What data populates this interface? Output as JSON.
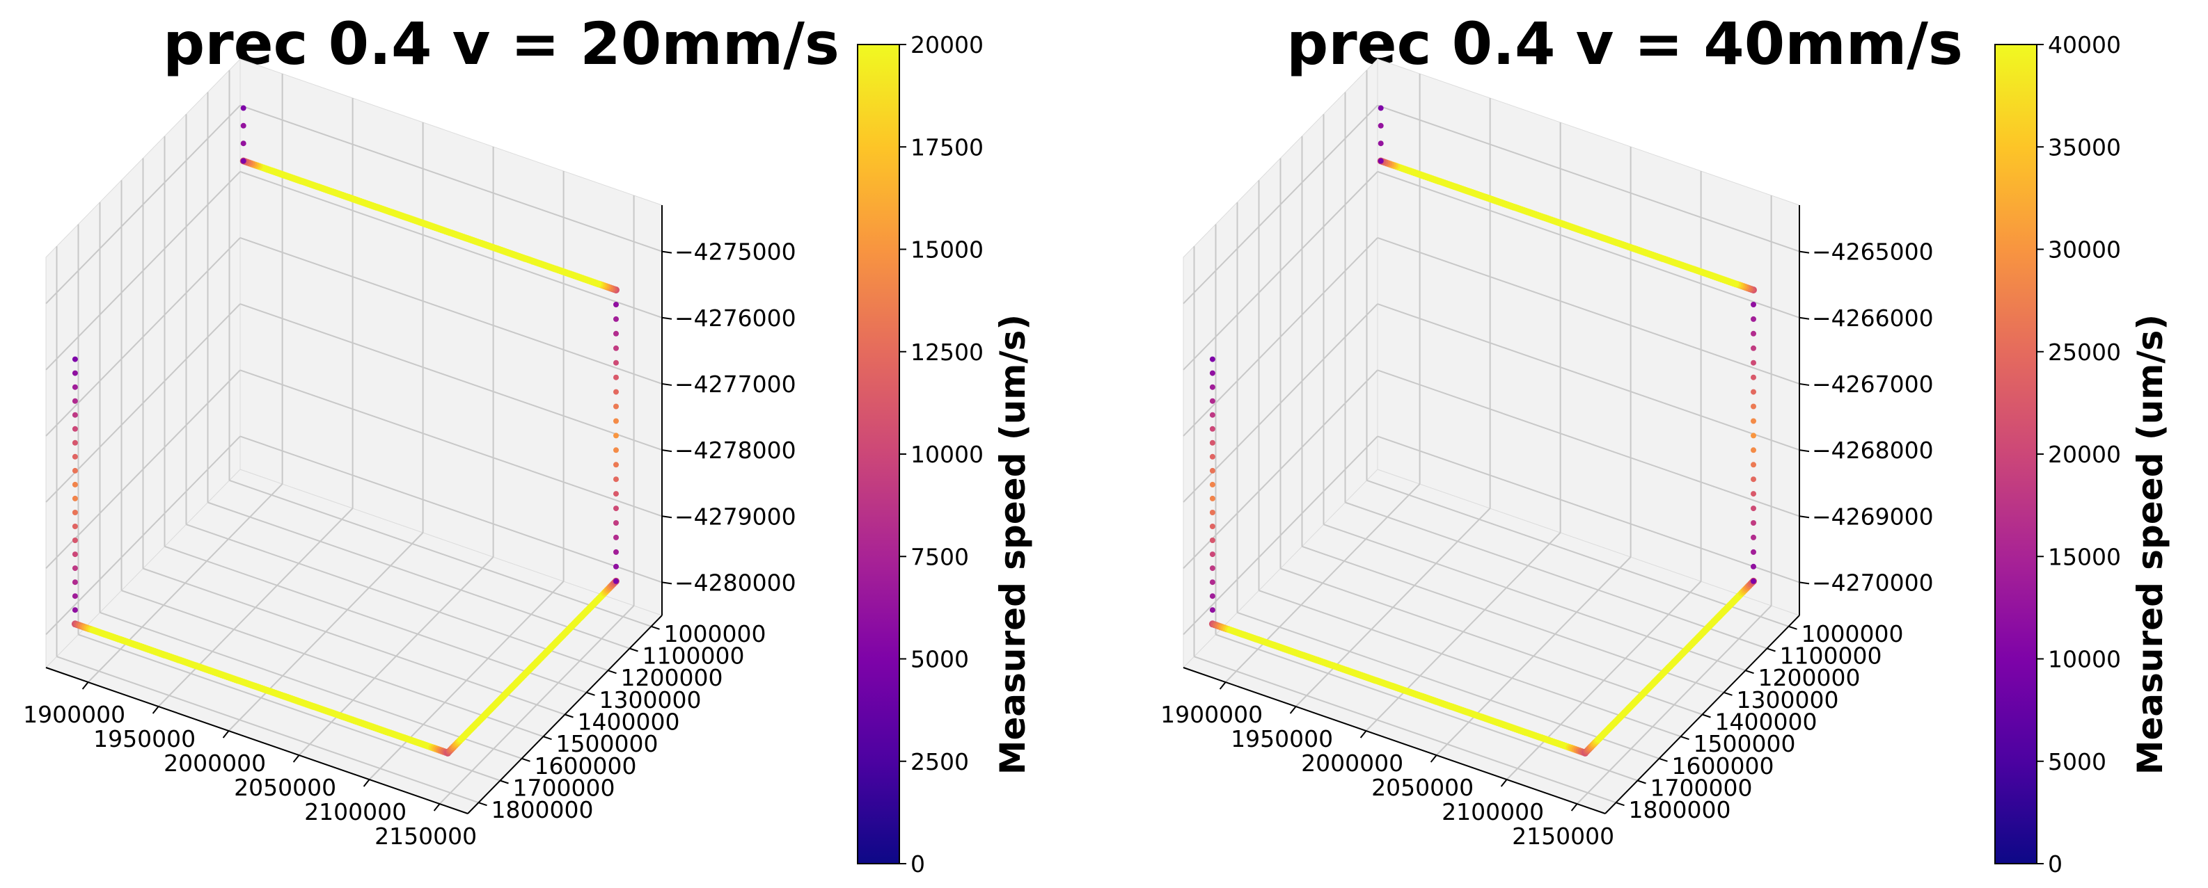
{
  "chart_data": [
    {
      "type": "scatter3d",
      "title": "prec 0.4 v = 20mm/s",
      "x_ticks": [
        "1900000",
        "1950000",
        "2000000",
        "2050000",
        "2100000",
        "2150000"
      ],
      "y_ticks": [
        "1000000",
        "1100000",
        "1200000",
        "1300000",
        "1400000",
        "1500000",
        "1600000",
        "1700000",
        "1800000"
      ],
      "z_ticks": [
        "−4275000",
        "−4276000",
        "−4277000",
        "−4278000",
        "−4279000",
        "−4280000"
      ],
      "xlim": [
        1870000,
        2170000
      ],
      "ylim": [
        950000,
        1850000
      ],
      "zlim": [
        -4280500,
        -4274300
      ],
      "colorbar": {
        "label": "Measured speed (um/s)",
        "ticks": [
          "0",
          "2500",
          "5000",
          "7500",
          "10000",
          "12500",
          "15000",
          "17500",
          "20000"
        ],
        "range": [
          0,
          20000
        ]
      },
      "path": [
        {
          "x": 1880000,
          "y": 1780000,
          "z": -4276000
        },
        {
          "x": 1880000,
          "y": 1780000,
          "z": -4280000
        },
        {
          "x": 2145000,
          "y": 1780000,
          "z": -4280000
        },
        {
          "x": 2145000,
          "y": 1000000,
          "z": -4280000
        },
        {
          "x": 2145000,
          "y": 1000000,
          "z": -4275600
        },
        {
          "x": 1880000,
          "y": 1000000,
          "z": -4275600
        },
        {
          "x": 1880000,
          "y": 1000000,
          "z": -4274800
        }
      ],
      "cruise_speed": 20000
    },
    {
      "type": "scatter3d",
      "title": "prec 0.4 v = 40mm/s",
      "x_ticks": [
        "1900000",
        "1950000",
        "2000000",
        "2050000",
        "2100000",
        "2150000"
      ],
      "y_ticks": [
        "1000000",
        "1100000",
        "1200000",
        "1300000",
        "1400000",
        "1500000",
        "1600000",
        "1700000",
        "1800000"
      ],
      "z_ticks": [
        "−4265000",
        "−4266000",
        "−4267000",
        "−4268000",
        "−4269000",
        "−4270000"
      ],
      "xlim": [
        1870000,
        2170000
      ],
      "ylim": [
        950000,
        1850000
      ],
      "zlim": [
        -4270500,
        -4264300
      ],
      "colorbar": {
        "label": "Measured speed (um/s)",
        "ticks": [
          "0",
          "5000",
          "10000",
          "15000",
          "20000",
          "25000",
          "30000",
          "35000",
          "40000"
        ],
        "range": [
          0,
          40000
        ]
      },
      "path": [
        {
          "x": 1880000,
          "y": 1780000,
          "z": -4266000
        },
        {
          "x": 1880000,
          "y": 1780000,
          "z": -4270000
        },
        {
          "x": 2145000,
          "y": 1780000,
          "z": -4270000
        },
        {
          "x": 2145000,
          "y": 1000000,
          "z": -4270000
        },
        {
          "x": 2145000,
          "y": 1000000,
          "z": -4265600
        },
        {
          "x": 1880000,
          "y": 1000000,
          "z": -4265600
        },
        {
          "x": 1880000,
          "y": 1000000,
          "z": -4264800
        }
      ],
      "cruise_speed": 40000
    }
  ]
}
